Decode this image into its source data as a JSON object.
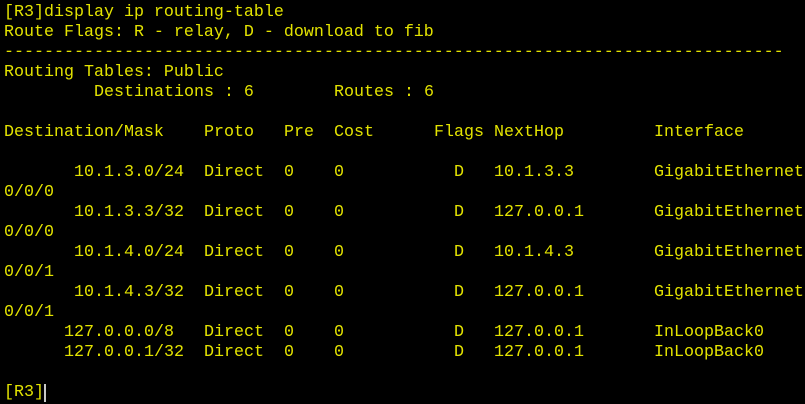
{
  "terminal": {
    "command_line": "[R3]display ip routing-table",
    "flags_line": "Route Flags: R - relay, D - download to fib",
    "separator": "------------------------------------------------------------------------------",
    "tables_line": "Routing Tables: Public",
    "destinations_label": "Destinations : 6",
    "routes_label": "Routes : 6",
    "columns": [
      "Destination/Mask",
      "Proto",
      "Pre",
      "Cost",
      "Flags",
      "NextHop",
      "Interface"
    ],
    "rows": [
      {
        "dest": "10.1.3.0/24",
        "proto": "Direct",
        "pre": "0",
        "cost": "0",
        "flags": "D",
        "nexthop": "10.1.3.3",
        "iface": "GigabitEthernet",
        "iface_wrap": "0/0/0"
      },
      {
        "dest": "10.1.3.3/32",
        "proto": "Direct",
        "pre": "0",
        "cost": "0",
        "flags": "D",
        "nexthop": "127.0.0.1",
        "iface": "GigabitEthernet",
        "iface_wrap": "0/0/0"
      },
      {
        "dest": "10.1.4.0/24",
        "proto": "Direct",
        "pre": "0",
        "cost": "0",
        "flags": "D",
        "nexthop": "10.1.4.3",
        "iface": "GigabitEthernet",
        "iface_wrap": "0/0/1"
      },
      {
        "dest": "10.1.4.3/32",
        "proto": "Direct",
        "pre": "0",
        "cost": "0",
        "flags": "D",
        "nexthop": "127.0.0.1",
        "iface": "GigabitEthernet",
        "iface_wrap": "0/0/1"
      },
      {
        "dest": "127.0.0.0/8",
        "proto": "Direct",
        "pre": "0",
        "cost": "0",
        "flags": "D",
        "nexthop": "127.0.0.1",
        "iface": "InLoopBack0",
        "iface_wrap": ""
      },
      {
        "dest": "127.0.0.1/32",
        "proto": "Direct",
        "pre": "0",
        "cost": "0",
        "flags": "D",
        "nexthop": "127.0.0.1",
        "iface": "InLoopBack0",
        "iface_wrap": ""
      }
    ],
    "prompt": "[R3]"
  },
  "colors": {
    "background": "#000000",
    "text": "#e3e300",
    "cursor": "#c8c8c8"
  }
}
